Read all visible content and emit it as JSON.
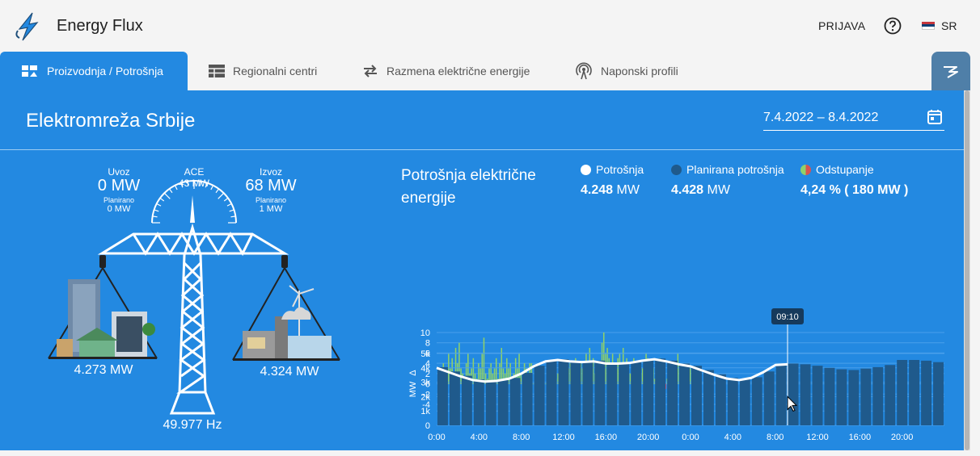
{
  "header": {
    "app_title": "Energy Flux",
    "login_label": "PRIJAVA",
    "help_icon": "help-circle-icon",
    "language": "SR",
    "accent_color": "#2389e1"
  },
  "tabs": [
    {
      "label": "Proizvodnja / Potrošnja",
      "icon": "production-icon",
      "active": true
    },
    {
      "label": "Regionalni centri",
      "icon": "table-icon",
      "active": false
    },
    {
      "label": "Razmena električne energije",
      "icon": "exchange-arrows-icon",
      "active": false
    },
    {
      "label": "Naponski profili",
      "icon": "antenna-icon",
      "active": false
    }
  ],
  "panel": {
    "title": "Elektromreža Srbije",
    "date_range": "7.4.2022 – 8.4.2022"
  },
  "scale": {
    "import": {
      "label": "Uvoz",
      "value": "0 MW",
      "planned_label": "Planirano",
      "planned_value": "0 MW"
    },
    "ace": {
      "label": "ACE",
      "value": "43 MW"
    },
    "export": {
      "label": "Izvoz",
      "value": "68 MW",
      "planned_label": "Planirano",
      "planned_value": "1 MW"
    },
    "consumption_side": "4.273 MW",
    "production_side": "4.324 MW",
    "frequency": "49.977 Hz"
  },
  "consumption_panel": {
    "title": "Potrošnja električne energije",
    "legend": [
      {
        "label": "Potrošnja",
        "value_bold": "4.248",
        "unit": "MW",
        "color": "#ffffff"
      },
      {
        "label": "Planirana potrošnja",
        "value_bold": "4.428",
        "unit": "MW",
        "color": "#1f5a8c"
      },
      {
        "label": "Odstupanje",
        "value_bold": "4,24 % ( 180 MW )",
        "unit": "",
        "color": "#d9534f"
      }
    ]
  },
  "chart_data": {
    "type": "bar",
    "cursor_label": "09:10",
    "x_ticks": [
      "0:00",
      "4:00",
      "8:00",
      "12:00",
      "16:00",
      "20:00",
      "0:00",
      "4:00",
      "8:00",
      "12:00",
      "16:00",
      "20:00"
    ],
    "top": {
      "ylabel": "Δ",
      "ylim": [
        -4,
        10
      ],
      "yticks": [
        "10",
        "8",
        "6",
        "4",
        "2",
        "0",
        "-2",
        "-4"
      ],
      "deviation": [
        1,
        3,
        2,
        4,
        1,
        2,
        6,
        3,
        5,
        2,
        7,
        4,
        8,
        3,
        2,
        1,
        4,
        6,
        2,
        3,
        5,
        2,
        1,
        4,
        3,
        6,
        9,
        2,
        1,
        3,
        4,
        2,
        3,
        5,
        1,
        4,
        7,
        3,
        2,
        5,
        3,
        4,
        1,
        2,
        5,
        3,
        6,
        2,
        1,
        4,
        3,
        2,
        4,
        4,
        0,
        -0.5,
        0,
        -0.5,
        0,
        0.5,
        1,
        0,
        -0.5,
        -1,
        0,
        1,
        2,
        1,
        2,
        3,
        4,
        2,
        3,
        2,
        3,
        4,
        2,
        3,
        5,
        3,
        2,
        4,
        3,
        2,
        6,
        4,
        7,
        3,
        5,
        2,
        4,
        3,
        4,
        8,
        10,
        6,
        7,
        5,
        4,
        6,
        3,
        4,
        5,
        6,
        4,
        7,
        3,
        5,
        4,
        2,
        3,
        5,
        4,
        3,
        -1,
        2,
        3,
        4,
        6,
        5,
        2,
        4,
        3,
        1,
        2,
        3,
        5,
        2,
        4,
        -1,
        1,
        -2,
        -3,
        -2,
        2,
        3,
        6,
        4,
        2,
        1,
        3,
        2,
        2,
        3
      ]
    },
    "bottom": {
      "ylabel": "MW",
      "ylim": [
        0,
        5000
      ],
      "yticks": [
        "5k",
        "4k",
        "3k",
        "2k",
        "1k",
        "0"
      ],
      "consumption_line_mw": [
        4000,
        3700,
        3400,
        3150,
        3050,
        3100,
        3250,
        3600,
        4100,
        4450,
        4550,
        4450,
        4400,
        4450,
        4300,
        4300,
        4350,
        4500,
        4600,
        4450,
        4250,
        4100,
        3800,
        3500,
        3250,
        3150,
        3300,
        3700,
        4200,
        4250
      ],
      "planned_mw": [
        4050,
        3750,
        3450,
        3200,
        3100,
        3150,
        3300,
        3650,
        4150,
        4500,
        4600,
        4500,
        4450,
        4500,
        4350,
        4350,
        4400,
        4550,
        4650,
        4500,
        4300,
        4150,
        3850,
        3550,
        3300,
        3200,
        3350,
        3750,
        4250,
        4300,
        4250,
        4150,
        4000,
        3900,
        3850,
        3950,
        4050,
        4200,
        4550,
        4550,
        4500,
        4400
      ]
    }
  }
}
